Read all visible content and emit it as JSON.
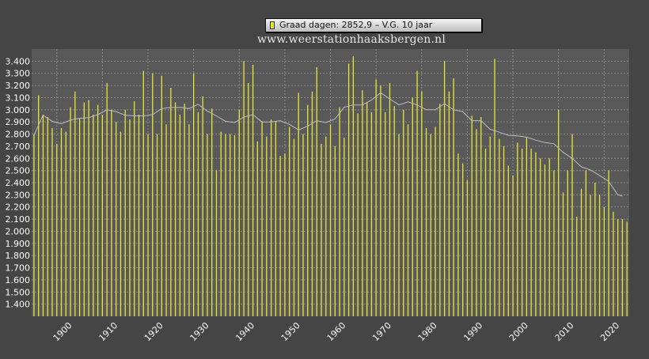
{
  "legend": {
    "label": "Graad dagen: 2852,9 – V.G. 10 jaar",
    "swatch_color": "#e6e632"
  },
  "watermark": "www.weerstationhaaksbergen.nl",
  "colors": {
    "background": "#454545",
    "plot_area": "#595959",
    "bar": "#e6e632",
    "moving_average": "#bdbdbd",
    "grid": "#8a8a8a",
    "axis_text": "#ffffff"
  },
  "chart_data": {
    "type": "bar",
    "grid": true,
    "legend_position": "top-center",
    "xlim": [
      1894.5,
      2025.5
    ],
    "ylim": [
      1300,
      3500
    ],
    "y_ticks": [
      1400,
      1500,
      1600,
      1700,
      1800,
      1900,
      2000,
      2100,
      2200,
      2300,
      2400,
      2500,
      2600,
      2700,
      2800,
      2900,
      3000,
      3100,
      3200,
      3300,
      3400
    ],
    "y_tick_labels": [
      "1.400",
      "1.500",
      "1.600",
      "1.700",
      "1.800",
      "1.900",
      "2.000",
      "2.100",
      "2.200",
      "2.300",
      "2.400",
      "2.500",
      "2.600",
      "2.700",
      "2.800",
      "2.900",
      "3.000",
      "3.100",
      "3.200",
      "3.300",
      "3.400"
    ],
    "x_ticks": [
      1900,
      1910,
      1920,
      1930,
      1940,
      1950,
      1960,
      1970,
      1980,
      1990,
      2000,
      2010,
      2020
    ],
    "x_tick_labels": [
      "1900",
      "1910",
      "1920",
      "1930",
      "1940",
      "1950",
      "1960",
      "1970",
      "1980",
      "1990",
      "2000",
      "2010",
      "2020"
    ],
    "series": [
      {
        "name": "Graad dagen",
        "x": [
          1895,
          1896,
          1897,
          1898,
          1899,
          1900,
          1901,
          1902,
          1903,
          1904,
          1905,
          1906,
          1907,
          1908,
          1909,
          1910,
          1911,
          1912,
          1913,
          1914,
          1915,
          1916,
          1917,
          1918,
          1919,
          1920,
          1921,
          1922,
          1923,
          1924,
          1925,
          1926,
          1927,
          1928,
          1929,
          1930,
          1931,
          1932,
          1933,
          1934,
          1935,
          1936,
          1937,
          1938,
          1939,
          1940,
          1941,
          1942,
          1943,
          1944,
          1945,
          1946,
          1947,
          1948,
          1949,
          1950,
          1951,
          1952,
          1953,
          1954,
          1955,
          1956,
          1957,
          1958,
          1959,
          1960,
          1961,
          1962,
          1963,
          1964,
          1965,
          1966,
          1967,
          1968,
          1969,
          1970,
          1971,
          1972,
          1973,
          1974,
          1975,
          1976,
          1977,
          1978,
          1979,
          1980,
          1981,
          1982,
          1983,
          1984,
          1985,
          1986,
          1987,
          1988,
          1989,
          1990,
          1991,
          1992,
          1993,
          1994,
          1995,
          1996,
          1997,
          1998,
          1999,
          2000,
          2001,
          2002,
          2003,
          2004,
          2005,
          2006,
          2007,
          2008,
          2009,
          2010,
          2011,
          2012,
          2013,
          2014,
          2015,
          2016,
          2017,
          2018,
          2019,
          2020,
          2021,
          2022,
          2023,
          2024,
          2025
        ],
        "values": [
          2800,
          3120,
          2960,
          2940,
          2850,
          2720,
          2850,
          2820,
          3020,
          3150,
          2930,
          3060,
          3080,
          2960,
          3040,
          2960,
          3220,
          3000,
          2900,
          2820,
          3000,
          2920,
          3070,
          2960,
          3320,
          2800,
          3300,
          2800,
          3280,
          2880,
          3180,
          3060,
          2960,
          3050,
          2880,
          3300,
          2980,
          3110,
          2800,
          3010,
          2500,
          2820,
          2800,
          2800,
          2790,
          3000,
          3400,
          3220,
          3370,
          2740,
          2900,
          2780,
          2920,
          2900,
          2620,
          2640,
          2860,
          2760,
          3140,
          2800,
          3040,
          3150,
          3350,
          2720,
          2780,
          2880,
          2700,
          3020,
          2770,
          3380,
          3440,
          2970,
          3160,
          3060,
          2980,
          3250,
          3200,
          2980,
          3220,
          3030,
          2800,
          3000,
          2880,
          3100,
          3320,
          3150,
          2850,
          2800,
          2860,
          3050,
          3400,
          3150,
          3260,
          2640,
          2560,
          2420,
          2950,
          2840,
          2940,
          2680,
          2780,
          3420,
          2760,
          2700,
          2540,
          2460,
          2730,
          2680,
          2770,
          2680,
          2650,
          2600,
          2550,
          2600,
          2500,
          3000,
          2320,
          2500,
          2800,
          2120,
          2350,
          2500,
          2300,
          2400,
          2300,
          2200,
          2500,
          2160,
          2100,
          2100,
          2080
        ]
      },
      {
        "name": "V.G. 10 jaar",
        "x": [
          1895,
          1897,
          1899,
          1901,
          1903,
          1905,
          1907,
          1909,
          1911,
          1913,
          1915,
          1917,
          1919,
          1921,
          1923,
          1925,
          1927,
          1929,
          1931,
          1933,
          1935,
          1937,
          1939,
          1941,
          1943,
          1945,
          1947,
          1949,
          1951,
          1953,
          1955,
          1957,
          1959,
          1961,
          1963,
          1965,
          1967,
          1969,
          1971,
          1973,
          1975,
          1977,
          1979,
          1981,
          1983,
          1985,
          1987,
          1989,
          1991,
          1993,
          1995,
          1997,
          1999,
          2001,
          2003,
          2005,
          2007,
          2009,
          2011,
          2013,
          2015,
          2017,
          2019,
          2021,
          2023,
          2024
        ],
        "values": [
          2790,
          2955,
          2905,
          2885,
          2915,
          2930,
          2935,
          2960,
          3000,
          2985,
          2955,
          2950,
          2950,
          2960,
          3010,
          3020,
          3020,
          3010,
          3045,
          2990,
          2950,
          2905,
          2895,
          2940,
          2960,
          2900,
          2900,
          2910,
          2880,
          2835,
          2865,
          2910,
          2895,
          2925,
          3020,
          3040,
          3040,
          3080,
          3140,
          3090,
          3040,
          3065,
          3040,
          3000,
          3000,
          3050,
          3000,
          2985,
          2910,
          2910,
          2840,
          2815,
          2790,
          2785,
          2775,
          2750,
          2730,
          2720,
          2650,
          2600,
          2530,
          2505,
          2460,
          2410,
          2300,
          2290
        ]
      }
    ]
  }
}
